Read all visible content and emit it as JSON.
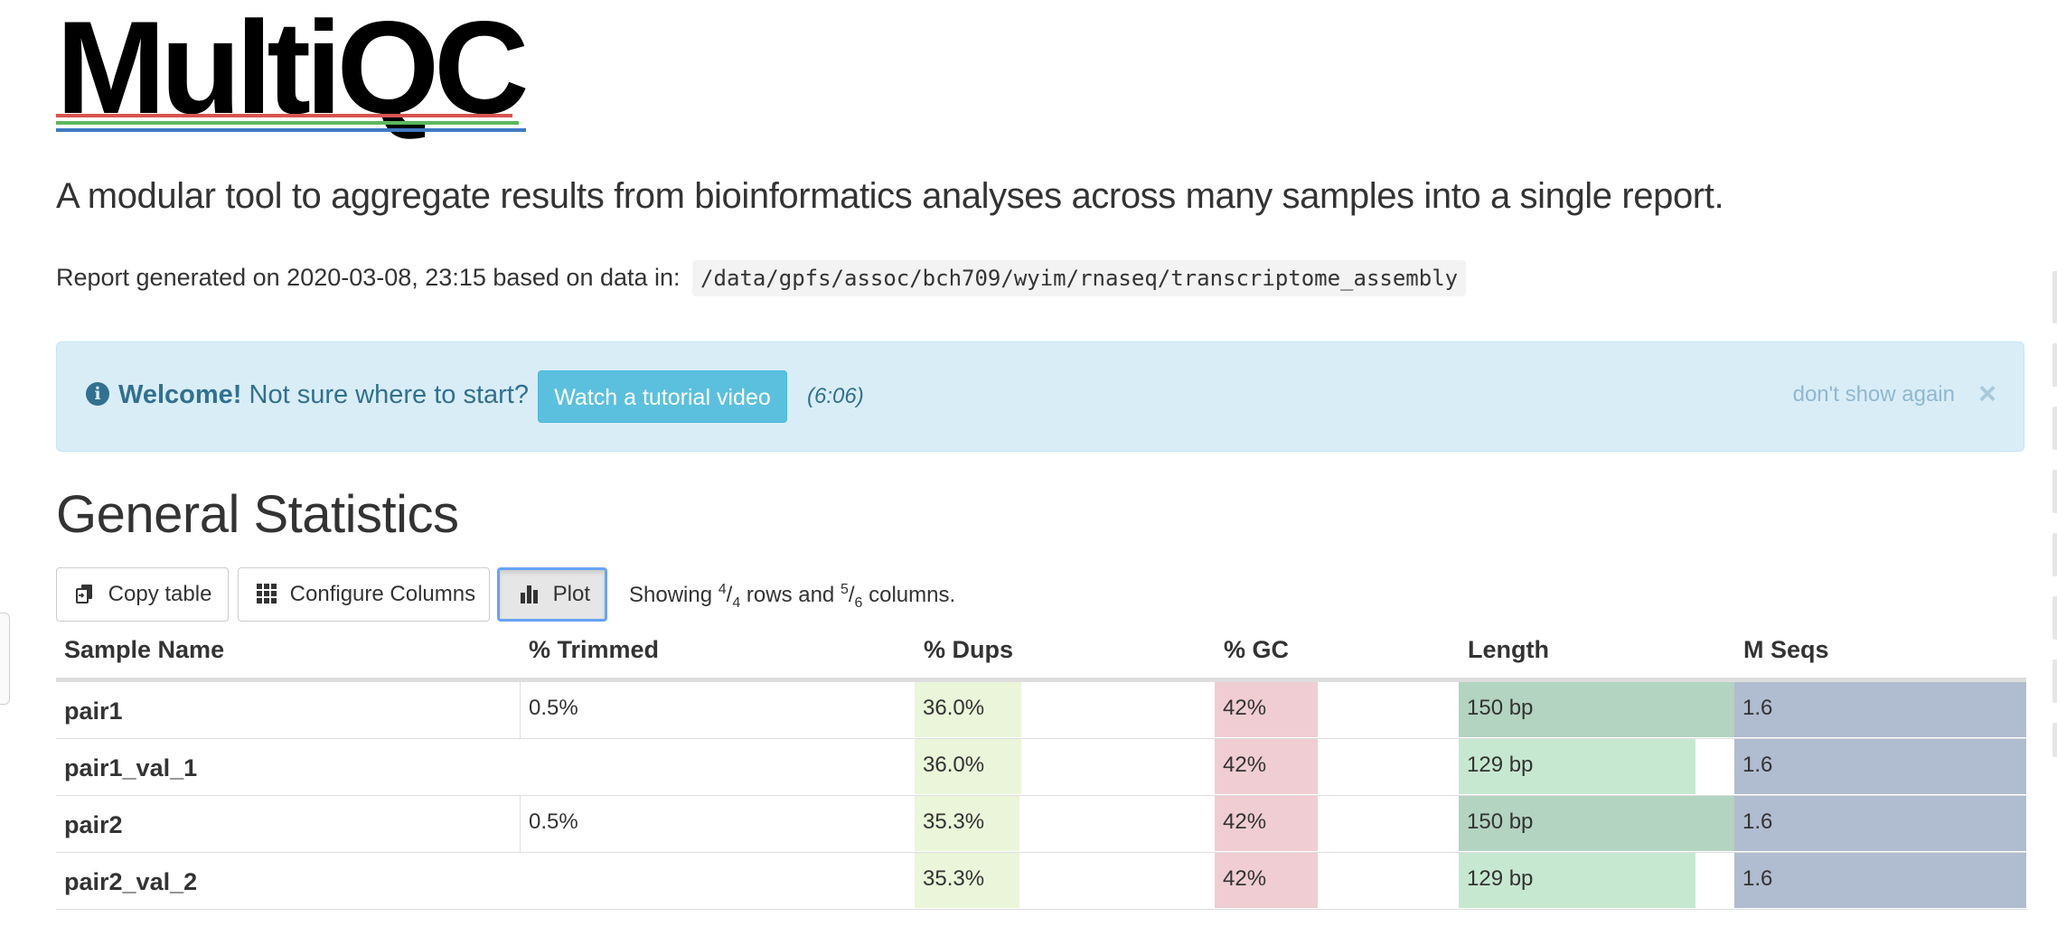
{
  "logo": {
    "text": "MultiQC",
    "line_colors": [
      "#d9534f",
      "#5cb85c",
      "#3e7bc4"
    ]
  },
  "tagline": "A modular tool to aggregate results from bioinformatics analyses across many samples into a single report.",
  "report": {
    "prefix": "Report generated on 2020-03-08, 23:15 based on data in:",
    "path": "/data/gpfs/assoc/bch709/wyim/rnaseq/transcriptome_assembly"
  },
  "welcome": {
    "icon": "info-circle-icon",
    "bold": "Welcome!",
    "text": "Not sure where to start?",
    "button_label": "Watch a tutorial video",
    "duration": "(6:06)",
    "dont_show": "don't show again",
    "close": "×"
  },
  "section": {
    "title": "General Statistics"
  },
  "toolbar": {
    "copy_label": "Copy table",
    "configure_label": "Configure Columns",
    "plot_label": "Plot",
    "showing_prefix": "Showing",
    "rows_num": "4",
    "rows_den": "4",
    "rows_word": "rows and",
    "cols_num": "5",
    "cols_den": "6",
    "cols_word": "columns."
  },
  "table": {
    "headers": [
      "Sample Name",
      "% Trimmed",
      "% Dups",
      "% GC",
      "Length",
      "M Seqs"
    ],
    "colors": {
      "dups": "#eaf5d9",
      "gc": "#efcdd3",
      "length_max": "#b3d4c1",
      "length": "#c6e8d0",
      "mseqs": "#b0bccf"
    },
    "rows": [
      {
        "name": "pair1",
        "trimmed": "0.5%",
        "dups": "36.0%",
        "gc": "42%",
        "length": "150 bp",
        "mseqs": "1.6",
        "dups_frac": 0.36,
        "gc_frac": 0.42,
        "length_frac": 1.0,
        "mseqs_frac": 1.0
      },
      {
        "name": "pair1_val_1",
        "trimmed": "",
        "dups": "36.0%",
        "gc": "42%",
        "length": "129 bp",
        "mseqs": "1.6",
        "dups_frac": 0.36,
        "gc_frac": 0.42,
        "length_frac": 0.86,
        "mseqs_frac": 1.0
      },
      {
        "name": "pair2",
        "trimmed": "0.5%",
        "dups": "35.3%",
        "gc": "42%",
        "length": "150 bp",
        "mseqs": "1.6",
        "dups_frac": 0.353,
        "gc_frac": 0.42,
        "length_frac": 1.0,
        "mseqs_frac": 1.0
      },
      {
        "name": "pair2_val_2",
        "trimmed": "",
        "dups": "35.3%",
        "gc": "42%",
        "length": "129 bp",
        "mseqs": "1.6",
        "dups_frac": 0.353,
        "gc_frac": 0.42,
        "length_frac": 0.86,
        "mseqs_frac": 1.0
      }
    ]
  }
}
